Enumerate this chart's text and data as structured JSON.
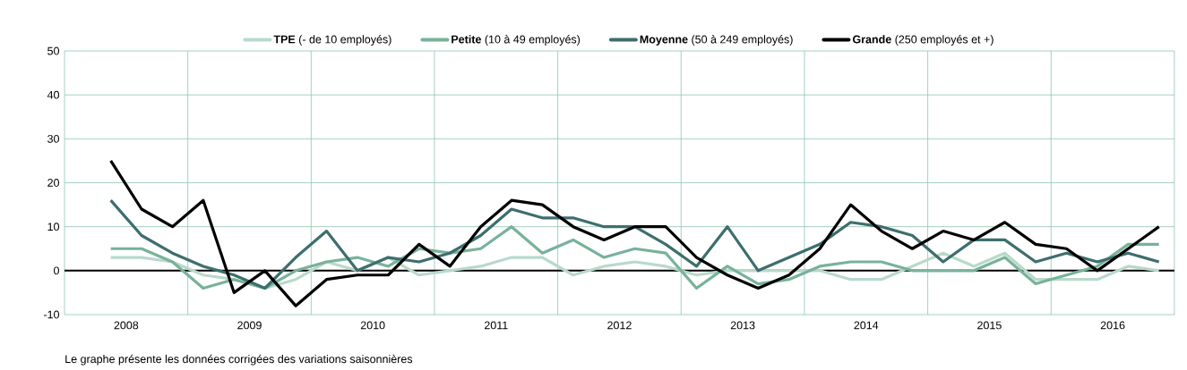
{
  "chart_data": {
    "type": "line",
    "x": [
      2008.375,
      2008.625,
      2008.875,
      2009.125,
      2009.375,
      2009.625,
      2009.875,
      2010.125,
      2010.375,
      2010.625,
      2010.875,
      2011.125,
      2011.375,
      2011.625,
      2011.875,
      2012.125,
      2012.375,
      2012.625,
      2012.875,
      2013.125,
      2013.375,
      2013.625,
      2013.875,
      2014.125,
      2014.375,
      2014.625,
      2014.875,
      2015.125,
      2015.375,
      2015.625,
      2015.875,
      2016.125,
      2016.375,
      2016.625,
      2016.875
    ],
    "series": [
      {
        "name": "**TPE** (- de 10 employés)",
        "color": "#b9d9cb",
        "values": [
          3,
          3,
          2,
          -1,
          -2,
          -4,
          -2,
          2,
          0,
          3,
          -1,
          0,
          1,
          3,
          3,
          -1,
          1,
          2,
          1,
          -1,
          0,
          0,
          0,
          0,
          -2,
          -2,
          1,
          4,
          1,
          4,
          -2,
          -2,
          -2,
          1,
          0
        ]
      },
      {
        "name": "**Petite** (10 à 49 employés)",
        "color": "#78b29a",
        "values": [
          5,
          5,
          2,
          -4,
          -2,
          -4,
          0,
          2,
          3,
          1,
          5,
          4,
          5,
          10,
          4,
          7,
          3,
          5,
          4,
          -4,
          1,
          -3,
          -2,
          1,
          2,
          2,
          0,
          0,
          0,
          3,
          -3,
          -1,
          1,
          6,
          6
        ]
      },
      {
        "name": "**Moyenne** (50 à 249 employés)",
        "color": "#3e6e6e",
        "values": [
          16,
          8,
          4,
          1,
          -1,
          -4,
          3,
          9,
          0,
          3,
          2,
          4,
          8,
          14,
          12,
          12,
          10,
          10,
          6,
          1,
          10,
          0,
          3,
          6,
          11,
          10,
          8,
          2,
          7,
          7,
          2,
          4,
          2,
          4,
          2
        ]
      },
      {
        "name": "**Grande** (250 employés et +)",
        "color": "#000000",
        "values": [
          25,
          14,
          10,
          16,
          -5,
          0,
          -8,
          -2,
          -1,
          -1,
          6,
          1,
          10,
          16,
          15,
          10,
          7,
          10,
          10,
          3,
          -1,
          -4,
          -1,
          5,
          15,
          9,
          5,
          9,
          7,
          11,
          6,
          5,
          0,
          5,
          10
        ]
      }
    ],
    "xlim": [
      2008,
      2017
    ],
    "xticks": [
      {
        "value": 2008,
        "label": null
      },
      {
        "value": 2008.5,
        "label": "2008"
      },
      {
        "value": 2009,
        "label": null
      },
      {
        "value": 2009.5,
        "label": "2009"
      },
      {
        "value": 2010,
        "label": null
      },
      {
        "value": 2010.5,
        "label": "2010"
      },
      {
        "value": 2011,
        "label": null
      },
      {
        "value": 2011.5,
        "label": "2011"
      },
      {
        "value": 2012,
        "label": null
      },
      {
        "value": 2012.5,
        "label": "2012"
      },
      {
        "value": 2013,
        "label": null
      },
      {
        "value": 2013.5,
        "label": "2013"
      },
      {
        "value": 2014,
        "label": null
      },
      {
        "value": 2014.5,
        "label": "2014"
      },
      {
        "value": 2015,
        "label": null
      },
      {
        "value": 2015.5,
        "label": "2015"
      },
      {
        "value": 2016,
        "label": null
      },
      {
        "value": 2016.5,
        "label": "2016"
      },
      {
        "value": 2017,
        "label": null
      }
    ],
    "ylim": [
      -10,
      50
    ],
    "yticks": [
      -10,
      0,
      10,
      20,
      30,
      40,
      50
    ],
    "ref_lines": [
      {
        "axis": "y",
        "value": 0,
        "color": "#000000"
      }
    ],
    "grid": true,
    "legend": "top",
    "line_style": "solid",
    "marker": "none",
    "annotations": [
      "Le graphe présente les données corrigées des variations saisonnières"
    ]
  }
}
